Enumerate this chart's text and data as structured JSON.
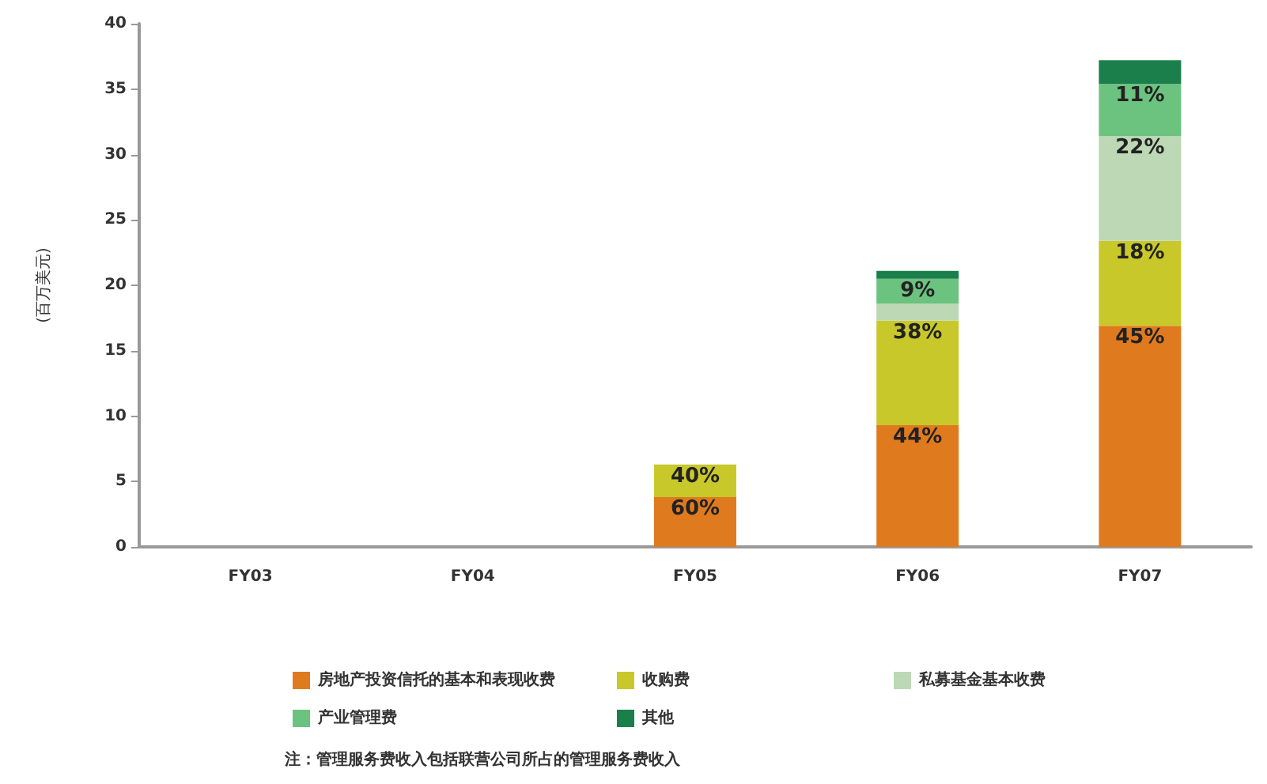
{
  "chart_data": {
    "type": "bar",
    "stacked": true,
    "ylabel": "(百万美元)",
    "categories": [
      "FY03",
      "FY04",
      "FY05",
      "FY06",
      "FY07"
    ],
    "series": [
      {
        "name": "房地产投资信托的基本和表现收费",
        "color": "#e07a1f",
        "values": [
          null,
          null,
          3.8,
          9.3,
          16.9
        ]
      },
      {
        "name": "收购费",
        "color": "#c8c82a",
        "values": [
          null,
          null,
          2.5,
          8.0,
          6.5
        ]
      },
      {
        "name": "私募基金基本收费",
        "color": "#bcd8b4",
        "values": [
          null,
          null,
          null,
          1.3,
          8.0
        ]
      },
      {
        "name": "产业管理费",
        "color": "#6cc27f",
        "values": [
          null,
          null,
          null,
          1.9,
          4.0
        ]
      },
      {
        "name": "其他",
        "color": "#1b7f4c",
        "values": [
          null,
          null,
          null,
          0.6,
          1.8
        ]
      }
    ],
    "ylim": [
      0,
      40
    ],
    "yticks": [
      0,
      5,
      10,
      15,
      20,
      25,
      30,
      35,
      40
    ],
    "grid": false,
    "legend": "bottom",
    "annotations": [
      {
        "text": "60%",
        "x": "FY05",
        "y": 3.8
      },
      {
        "text": "40%",
        "x": "FY05",
        "y": 6.3
      },
      {
        "text": "44%",
        "x": "FY06",
        "y": 9.3
      },
      {
        "text": "38%",
        "x": "FY06",
        "y": 17.3
      },
      {
        "text": "9%",
        "x": "FY06",
        "y": 20.5
      },
      {
        "text": "45%",
        "x": "FY07",
        "y": 16.9
      },
      {
        "text": "18%",
        "x": "FY07",
        "y": 23.4
      },
      {
        "text": "22%",
        "x": "FY07",
        "y": 31.4
      },
      {
        "text": "11%",
        "x": "FY07",
        "y": 35.4
      },
      "注：管理服务费收入包括联营公司所占的管理服务费收入"
    ]
  }
}
